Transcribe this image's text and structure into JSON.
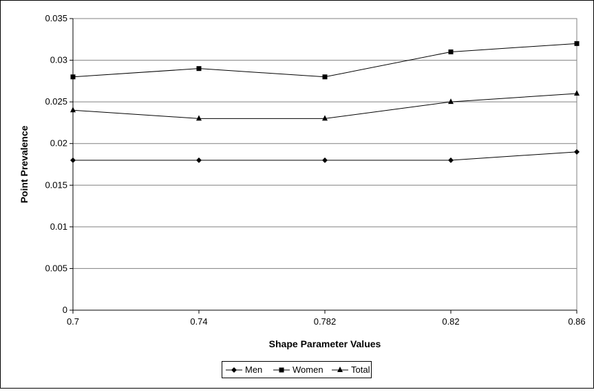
{
  "chart_data": {
    "type": "line",
    "title": "",
    "xlabel": "Shape Parameter Values",
    "ylabel": "Point Prevalence",
    "categories": [
      "0.7",
      "0.74",
      "0.782",
      "0.82",
      "0.86"
    ],
    "ylim": [
      0,
      0.035
    ],
    "yticks": [
      "0",
      "0.005",
      "0.01",
      "0.015",
      "0.02",
      "0.025",
      "0.03",
      "0.035"
    ],
    "grid": true,
    "legend_position": "bottom",
    "series": [
      {
        "name": "Men",
        "marker": "diamond",
        "values": [
          0.018,
          0.018,
          0.018,
          0.018,
          0.019
        ]
      },
      {
        "name": "Women",
        "marker": "square",
        "values": [
          0.028,
          0.029,
          0.028,
          0.031,
          0.032
        ]
      },
      {
        "name": "Total",
        "marker": "triangle",
        "values": [
          0.024,
          0.023,
          0.023,
          0.025,
          0.026
        ]
      }
    ]
  }
}
